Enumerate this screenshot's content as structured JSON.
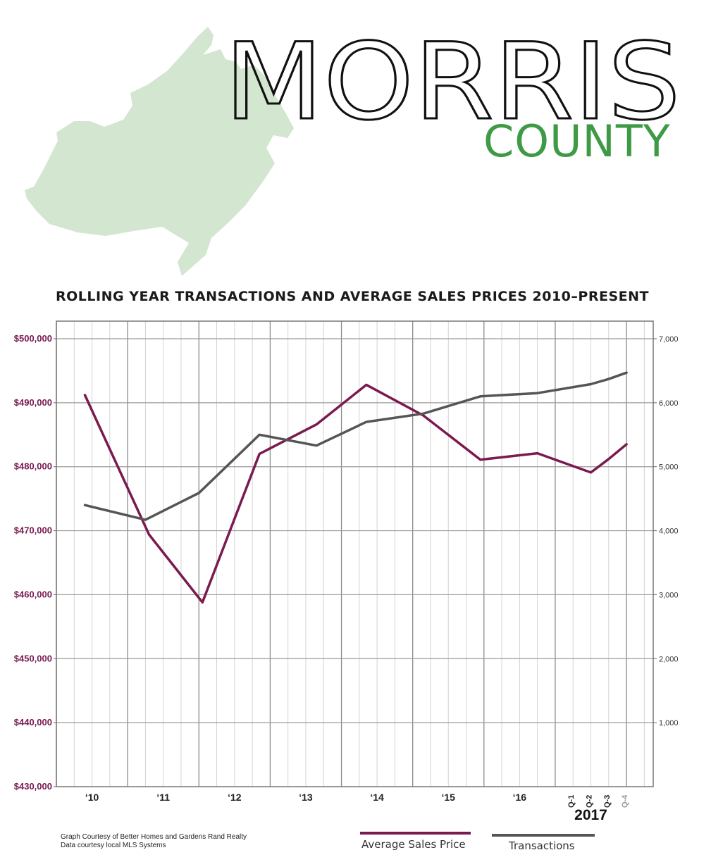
{
  "header": {
    "title": "MORRIS",
    "subtitle": "COUNTY",
    "subtitle_color": "#3f9a45",
    "map_color": "#d3e6d0"
  },
  "chart_data": {
    "type": "line",
    "title": "ROLLING YEAR TRANSACTIONS AND AVERAGE SALES PRICES 2010–PRESENT",
    "xlabel": "",
    "x_tick_labels": [
      "‘10",
      "‘11",
      "‘12",
      "‘13",
      "‘14",
      "‘15",
      "‘16"
    ],
    "quarter_labels": [
      "Q-1",
      "Q-2",
      "Q-3",
      "Q-4"
    ],
    "year_label": "2017",
    "left_axis": {
      "ylim": [
        430000,
        500000
      ],
      "ticks": [
        "$430,000",
        "$440,000",
        "$450,000",
        "$460,000",
        "$470,000",
        "$480,000",
        "$490,000",
        "$500,000"
      ],
      "color": "#7a1a4e"
    },
    "right_axis": {
      "ylim": [
        0,
        7000
      ],
      "ticks": [
        "1,000",
        "2,000",
        "3,000",
        "4,000",
        "5,000",
        "6,000",
        "7,000"
      ],
      "color": "#333333"
    },
    "grid": true,
    "legend_placement": "bottom",
    "series": [
      {
        "name": "Average Sales Price",
        "axis": "left",
        "color": "#7a1a4e",
        "points": [
          [
            2009.4,
            491200
          ],
          [
            2010.3,
            469400
          ],
          [
            2011.05,
            458800
          ],
          [
            2011.85,
            482000
          ],
          [
            2012.65,
            486600
          ],
          [
            2013.35,
            492800
          ],
          [
            2014.15,
            488000
          ],
          [
            2014.95,
            481100
          ],
          [
            2015.75,
            482100
          ],
          [
            2016.5,
            479100
          ],
          [
            2016.75,
            481200
          ],
          [
            2017.0,
            483500
          ]
        ]
      },
      {
        "name": "Transactions",
        "axis": "right",
        "color": "#555555",
        "points": [
          [
            2009.4,
            4400
          ],
          [
            2010.25,
            4170
          ],
          [
            2011.0,
            4590
          ],
          [
            2011.85,
            5500
          ],
          [
            2012.65,
            5330
          ],
          [
            2013.35,
            5700
          ],
          [
            2014.15,
            5830
          ],
          [
            2014.95,
            6100
          ],
          [
            2015.75,
            6150
          ],
          [
            2016.5,
            6290
          ],
          [
            2016.75,
            6370
          ],
          [
            2017.0,
            6470
          ]
        ]
      }
    ]
  },
  "credits": {
    "line1": "Graph Courtesy of Better Homes and Gardens Rand Realty",
    "line2": "Data courtesy local MLS Systems"
  }
}
